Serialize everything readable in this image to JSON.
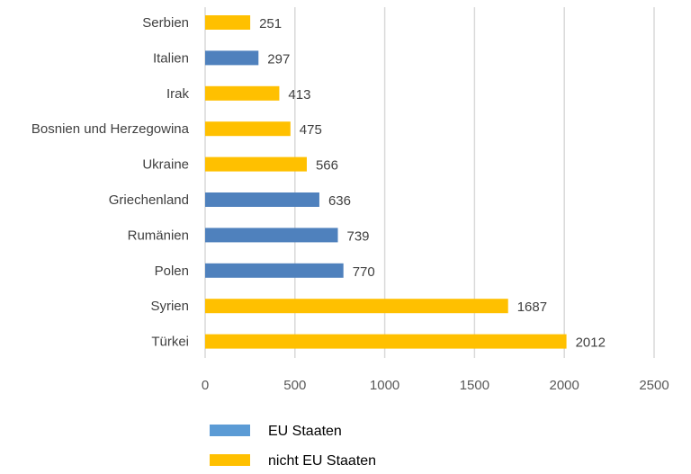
{
  "chart_data": {
    "type": "bar",
    "orientation": "horizontal",
    "categories": [
      "Serbien",
      "Italien",
      "Irak",
      "Bosnien und Herzegowina",
      "Ukraine",
      "Griechenland",
      "Rumänien",
      "Polen",
      "Syrien",
      "Türkei"
    ],
    "values": [
      251,
      297,
      413,
      475,
      566,
      636,
      739,
      770,
      1687,
      2012
    ],
    "groups": [
      "nicht EU Staaten",
      "EU Staaten",
      "nicht EU Staaten",
      "nicht EU Staaten",
      "nicht EU Staaten",
      "EU Staaten",
      "EU Staaten",
      "EU Staaten",
      "nicht EU Staaten",
      "nicht EU Staaten"
    ],
    "xlim": [
      0,
      2500
    ],
    "xticks": [
      0,
      500,
      1000,
      1500,
      2000,
      2500
    ],
    "grid": "vertical",
    "legend_placement": "bottom-left",
    "legend": [
      {
        "name": "EU Staaten",
        "color": "#5b9bd5"
      },
      {
        "name": "nicht EU Staaten",
        "color": "#ffc000"
      }
    ],
    "colors": {
      "EU Staaten": "#4f81bd",
      "nicht EU Staaten": "#ffc000"
    }
  }
}
